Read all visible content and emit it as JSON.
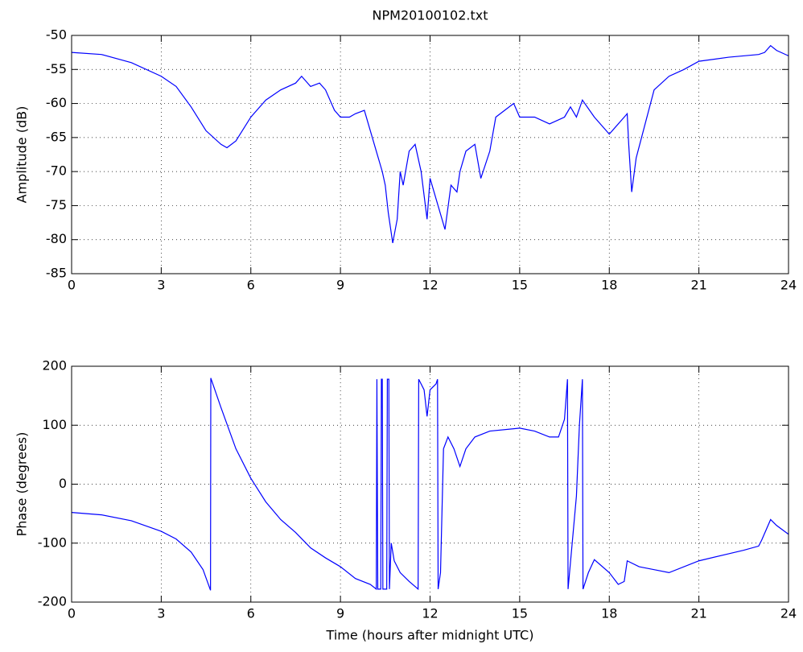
{
  "chart_data": [
    {
      "type": "line",
      "title": "NPM20100102.txt",
      "ylabel": "Amplitude (dB)",
      "color": "#0000ff",
      "grid": true,
      "xlim": [
        0,
        24
      ],
      "xticks": [
        0,
        3,
        6,
        9,
        12,
        15,
        18,
        21,
        24
      ],
      "ylim": [
        -85,
        -50
      ],
      "yticks": [
        -50,
        -55,
        -60,
        -65,
        -70,
        -75,
        -80,
        -85
      ],
      "x": [
        0,
        1,
        2,
        3,
        3.5,
        4,
        4.5,
        5,
        5.2,
        5.5,
        6,
        6.5,
        7,
        7.5,
        7.7,
        8,
        8.3,
        8.5,
        8.8,
        9,
        9.3,
        9.5,
        9.8,
        10,
        10.2,
        10.4,
        10.5,
        10.6,
        10.75,
        10.9,
        11,
        11.1,
        11.3,
        11.5,
        11.7,
        11.9,
        12,
        12.2,
        12.4,
        12.5,
        12.7,
        12.9,
        13,
        13.2,
        13.5,
        13.7,
        14,
        14.2,
        14.5,
        14.8,
        15,
        15.5,
        16,
        16.5,
        16.7,
        16.9,
        17.1,
        17.5,
        18,
        18.5,
        18.6,
        18.65,
        18.75,
        18.9,
        19.2,
        19.5,
        20,
        20.5,
        21,
        22,
        23,
        23.2,
        23.4,
        23.6,
        24
      ],
      "values": [
        -52.5,
        -52.8,
        -54,
        -56,
        -57.5,
        -60.5,
        -64,
        -66,
        -66.5,
        -65.5,
        -62,
        -59.5,
        -58,
        -57,
        -56,
        -57.5,
        -57,
        -58,
        -61,
        -62,
        -62,
        -61.5,
        -61,
        -64,
        -67,
        -70,
        -72,
        -76,
        -80.5,
        -77,
        -70,
        -72,
        -67,
        -66,
        -70,
        -77,
        -71,
        -74,
        -77,
        -78.5,
        -72,
        -73,
        -70,
        -67,
        -66,
        -71,
        -67,
        -62,
        -61,
        -60,
        -62,
        -62,
        -63,
        -62,
        -60.5,
        -62,
        -59.5,
        -62,
        -64.5,
        -62,
        -61.5,
        -66,
        -73,
        -68,
        -63,
        -58,
        -56,
        -55,
        -53.8,
        -53.2,
        -52.8,
        -52.5,
        -51.5,
        -52.2,
        -53
      ]
    },
    {
      "type": "line",
      "xlabel": "Time (hours after midnight UTC)",
      "ylabel": "Phase (degrees)",
      "color": "#0000ff",
      "grid": true,
      "xlim": [
        0,
        24
      ],
      "xticks": [
        0,
        3,
        6,
        9,
        12,
        15,
        18,
        21,
        24
      ],
      "ylim": [
        -200,
        200
      ],
      "yticks": [
        200,
        100,
        0,
        -100,
        -200
      ],
      "x": [
        0,
        1,
        2,
        3,
        3.5,
        4,
        4.4,
        4.65,
        4.66,
        5,
        5.5,
        6,
        6.5,
        7,
        7.5,
        8,
        8.5,
        9,
        9.5,
        10,
        10.2,
        10.22,
        10.25,
        10.35,
        10.37,
        10.4,
        10.42,
        10.55,
        10.57,
        10.62,
        10.64,
        10.7,
        10.8,
        11,
        11.3,
        11.6,
        11.62,
        11.8,
        11.9,
        12,
        12.2,
        12.25,
        12.27,
        12.35,
        12.45,
        12.6,
        12.8,
        13,
        13.2,
        13.5,
        14,
        15,
        15.5,
        16,
        16.3,
        16.5,
        16.6,
        16.62,
        16.9,
        17,
        17.1,
        17.12,
        17.3,
        17.5,
        18,
        18.3,
        18.5,
        18.6,
        19,
        19.5,
        20,
        21,
        22,
        22.5,
        23,
        23.1,
        23.4,
        23.6,
        24
      ],
      "values": [
        -48,
        -52,
        -62,
        -80,
        -93,
        -115,
        -145,
        -180,
        180,
        130,
        60,
        10,
        -30,
        -60,
        -82,
        -108,
        -125,
        -140,
        -160,
        -170,
        -178,
        178,
        -178,
        -178,
        178,
        178,
        -178,
        -178,
        178,
        178,
        -178,
        -100,
        -130,
        -150,
        -165,
        -178,
        178,
        160,
        115,
        160,
        170,
        178,
        -178,
        -150,
        60,
        80,
        60,
        30,
        60,
        80,
        90,
        95,
        90,
        80,
        80,
        110,
        178,
        -178,
        -20,
        100,
        178,
        -178,
        -150,
        -128,
        -150,
        -170,
        -165,
        -130,
        -140,
        -145,
        -150,
        -130,
        -118,
        -112,
        -105,
        -95,
        -60,
        -70,
        -85
      ]
    }
  ]
}
